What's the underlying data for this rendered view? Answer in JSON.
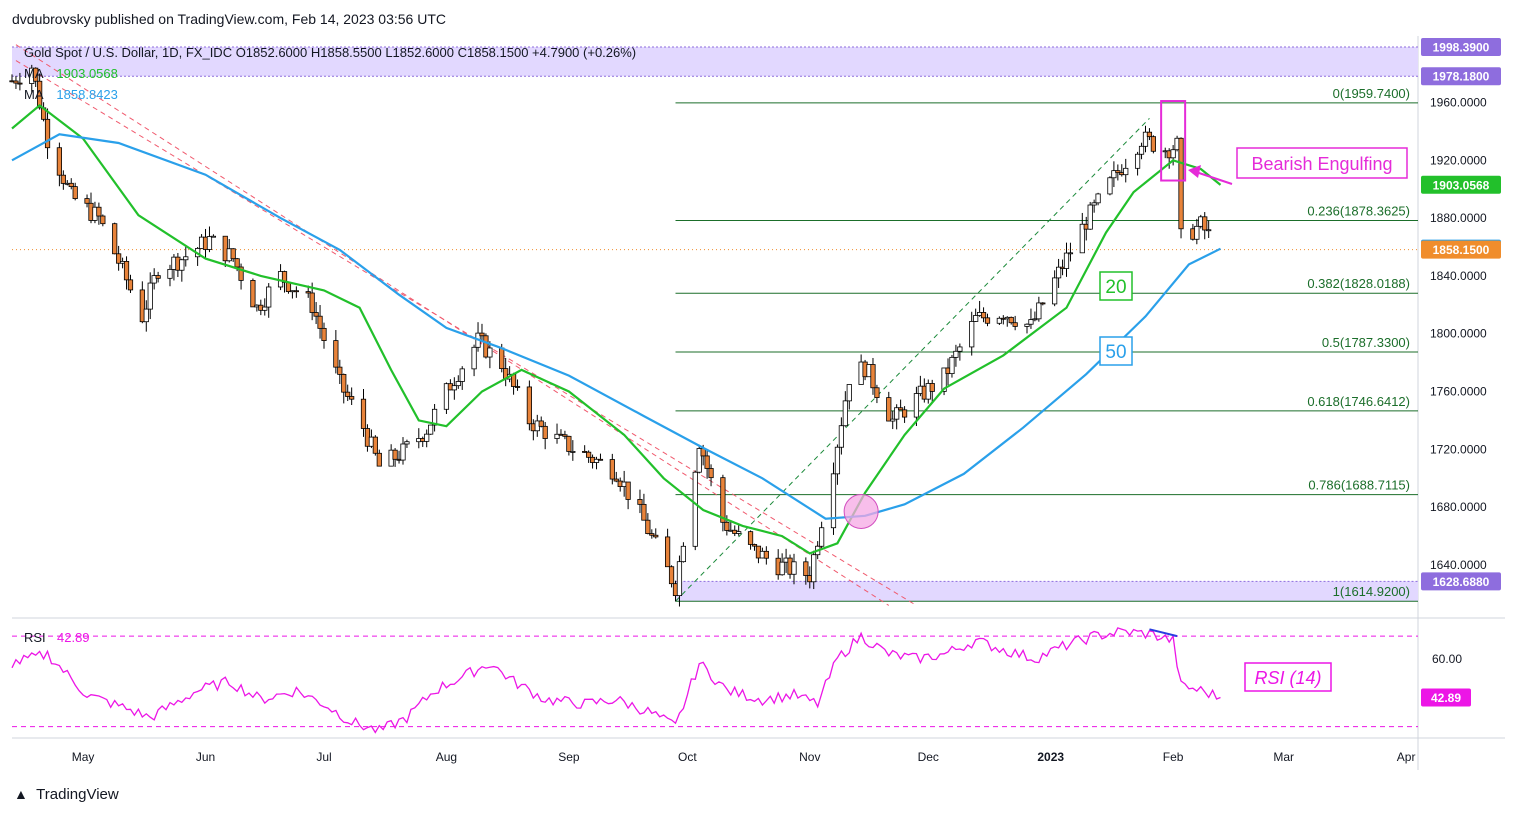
{
  "publisher_line": "dvdubrovsky published on TradingView.com, Feb 14, 2023 03:56 UTC",
  "legend": {
    "symbol_line": "Gold Spot / U.S. Dollar, 1D, FX_IDC  O1852.6000  H1858.5500  L1852.6000  C1858.1500  +4.7900 (+0.26%)",
    "ma1_label": "MA",
    "ma1_value": "1903.0568",
    "ma2_label": "MA",
    "ma2_value": "1858.8423"
  },
  "footer": {
    "brand": "TradingView"
  },
  "colors": {
    "up_candle": "#ffffff",
    "down_candle": "#e8833a",
    "candle_outline": "#000000",
    "ma20": "#22c02b",
    "ma50": "#2aa0ea",
    "trendline": "#f05a6e",
    "fib_line": "#1b6e2a",
    "zone": "#e2d8ff",
    "rsi": "#ec16e6",
    "annotation": "#e52bd8"
  },
  "chart_data": [
    {
      "type": "candlestick",
      "y_unit": "USD",
      "x_axis_ticks": [
        "May",
        "Jun",
        "Jul",
        "Aug",
        "Sep",
        "Oct",
        "Nov",
        "Dec",
        "2023",
        "Feb",
        "Mar",
        "Apr"
      ],
      "y_axis_ticks": [
        "1960.0000",
        "1920.0000",
        "1880.0000",
        "1840.0000",
        "1800.0000",
        "1760.0000",
        "1720.0000",
        "1680.0000",
        "1640.0000"
      ],
      "ylim": [
        1604,
        2006
      ],
      "x_range": [
        "2022-04-13",
        "2023-04-04"
      ],
      "price_tags": [
        {
          "label": "1998.3900",
          "value": 1998.39,
          "color": "#8e6dde"
        },
        {
          "label": "1978.1800",
          "value": 1978.18,
          "color": "#8e6dde"
        },
        {
          "label": "1903.0568",
          "value": 1903.0568,
          "color": "#22c02b"
        },
        {
          "label": "1858.8423",
          "value": 1858.8423,
          "color": "#2aa0ea"
        },
        {
          "label": "1858.1500",
          "value": 1858.15,
          "color": "#f08d2c"
        },
        {
          "label": "1628.6880",
          "value": 1628.688,
          "color": "#8e6dde"
        }
      ],
      "resistance_zone": [
        1978.18,
        1998.39
      ],
      "support_zone": [
        1614.92,
        1628.688
      ],
      "last_close": 1858.15,
      "fibonacci": {
        "start_date": "2022-09-28",
        "end_date": "2023-04-04",
        "levels": [
          {
            "label": "0(1959.7400)",
            "value": 1959.74
          },
          {
            "label": "0.236(1878.3625)",
            "value": 1878.3625
          },
          {
            "label": "0.382(1828.0188)",
            "value": 1828.0188
          },
          {
            "label": "0.5(1787.3300)",
            "value": 1787.33
          },
          {
            "label": "0.618(1746.6412)",
            "value": 1746.6412
          },
          {
            "label": "0.786(1688.7115)",
            "value": 1688.7115
          },
          {
            "label": "1(1614.9200)",
            "value": 1614.92
          }
        ]
      },
      "trendlines": [
        {
          "start": [
            "2022-04-14",
            2000
          ],
          "end": [
            "2022-11-21",
            1612
          ]
        },
        {
          "start": [
            "2022-04-14",
            1989
          ],
          "end": [
            "2022-11-28",
            1612
          ]
        }
      ],
      "channel_line": {
        "start": [
          "2022-09-28",
          1614.92
        ],
        "end": [
          "2023-01-26",
          1949
        ]
      },
      "ma_series": [
        {
          "name": "MA 20",
          "label": "20",
          "color": "#22c02b",
          "points": [
            [
              "2022-04-13",
              1942
            ],
            [
              "2022-04-20",
              1958
            ],
            [
              "2022-05-01",
              1935
            ],
            [
              "2022-05-15",
              1882
            ],
            [
              "2022-06-01",
              1852
            ],
            [
              "2022-06-15",
              1840
            ],
            [
              "2022-07-01",
              1830
            ],
            [
              "2022-07-10",
              1818
            ],
            [
              "2022-07-18",
              1775
            ],
            [
              "2022-07-25",
              1740
            ],
            [
              "2022-08-01",
              1736
            ],
            [
              "2022-08-10",
              1760
            ],
            [
              "2022-08-20",
              1775
            ],
            [
              "2022-09-01",
              1760
            ],
            [
              "2022-09-15",
              1730
            ],
            [
              "2022-09-25",
              1700
            ],
            [
              "2022-10-05",
              1678
            ],
            [
              "2022-10-15",
              1667
            ],
            [
              "2022-10-25",
              1660
            ],
            [
              "2022-11-01",
              1648
            ],
            [
              "2022-11-08",
              1655
            ],
            [
              "2022-11-15",
              1690
            ],
            [
              "2022-11-25",
              1730
            ],
            [
              "2022-12-05",
              1762
            ],
            [
              "2022-12-20",
              1785
            ],
            [
              "2023-01-05",
              1818
            ],
            [
              "2023-01-15",
              1870
            ],
            [
              "2023-01-22",
              1898
            ],
            [
              "2023-02-01",
              1920
            ],
            [
              "2023-02-08",
              1914
            ],
            [
              "2023-02-13",
              1903
            ]
          ]
        },
        {
          "name": "MA 50",
          "label": "50",
          "color": "#2aa0ea",
          "points": [
            [
              "2022-04-13",
              1920
            ],
            [
              "2022-04-25",
              1938
            ],
            [
              "2022-05-10",
              1932
            ],
            [
              "2022-06-01",
              1910
            ],
            [
              "2022-06-20",
              1880
            ],
            [
              "2022-07-05",
              1858
            ],
            [
              "2022-07-20",
              1827
            ],
            [
              "2022-08-01",
              1804
            ],
            [
              "2022-08-15",
              1790
            ],
            [
              "2022-09-01",
              1771
            ],
            [
              "2022-09-20",
              1743
            ],
            [
              "2022-10-05",
              1721
            ],
            [
              "2022-10-20",
              1700
            ],
            [
              "2022-11-05",
              1672
            ],
            [
              "2022-11-15",
              1674
            ],
            [
              "2022-11-25",
              1682
            ],
            [
              "2022-12-10",
              1703
            ],
            [
              "2022-12-25",
              1735
            ],
            [
              "2023-01-10",
              1772
            ],
            [
              "2023-01-25",
              1812
            ],
            [
              "2023-02-05",
              1848
            ],
            [
              "2023-02-13",
              1858.84
            ]
          ]
        }
      ],
      "candle_path": [
        [
          "2022-04-13",
          1975
        ],
        [
          "2022-04-18",
          1985
        ],
        [
          "2022-04-22",
          1935
        ],
        [
          "2022-04-28",
          1895
        ],
        [
          "2022-05-05",
          1880
        ],
        [
          "2022-05-10",
          1850
        ],
        [
          "2022-05-16",
          1812
        ],
        [
          "2022-05-20",
          1845
        ],
        [
          "2022-05-26",
          1852
        ],
        [
          "2022-06-02",
          1865
        ],
        [
          "2022-06-08",
          1852
        ],
        [
          "2022-06-14",
          1818
        ],
        [
          "2022-06-20",
          1840
        ],
        [
          "2022-06-28",
          1820
        ],
        [
          "2022-07-05",
          1765
        ],
        [
          "2022-07-10",
          1742
        ],
        [
          "2022-07-15",
          1708
        ],
        [
          "2022-07-21",
          1718
        ],
        [
          "2022-07-27",
          1734
        ],
        [
          "2022-08-02",
          1765
        ],
        [
          "2022-08-09",
          1795
        ],
        [
          "2022-08-15",
          1779
        ],
        [
          "2022-08-22",
          1740
        ],
        [
          "2022-08-30",
          1725
        ],
        [
          "2022-09-06",
          1715
        ],
        [
          "2022-09-13",
          1705
        ],
        [
          "2022-09-20",
          1670
        ],
        [
          "2022-09-28",
          1625
        ],
        [
          "2022-10-04",
          1726
        ],
        [
          "2022-10-10",
          1670
        ],
        [
          "2022-10-17",
          1651
        ],
        [
          "2022-10-24",
          1640
        ],
        [
          "2022-11-01",
          1633
        ],
        [
          "2022-11-07",
          1710
        ],
        [
          "2022-11-11",
          1770
        ],
        [
          "2022-11-15",
          1777
        ],
        [
          "2022-11-22",
          1740
        ],
        [
          "2022-11-28",
          1755
        ],
        [
          "2022-12-05",
          1770
        ],
        [
          "2022-12-13",
          1810
        ],
        [
          "2022-12-20",
          1815
        ],
        [
          "2022-12-27",
          1805
        ],
        [
          "2023-01-03",
          1842
        ],
        [
          "2023-01-10",
          1878
        ],
        [
          "2023-01-17",
          1908
        ],
        [
          "2023-01-24",
          1935
        ],
        [
          "2023-01-30",
          1928
        ],
        [
          "2023-02-02",
          1930
        ],
        [
          "2023-02-03",
          1866
        ],
        [
          "2023-02-08",
          1875
        ],
        [
          "2023-02-13",
          1858.15
        ]
      ],
      "rsi": {
        "label": "RSI",
        "value": "42.89",
        "value_num": 42.89,
        "ylim": [
          25,
          78
        ],
        "upper_band": 70,
        "lower_band": 30,
        "y_axis_ticks": [
          "60.00"
        ],
        "points": [
          [
            "2022-04-13",
            58
          ],
          [
            "2022-04-22",
            62
          ],
          [
            "2022-05-02",
            44
          ],
          [
            "2022-05-12",
            38
          ],
          [
            "2022-05-18",
            34
          ],
          [
            "2022-05-30",
            46
          ],
          [
            "2022-06-07",
            50
          ],
          [
            "2022-06-15",
            42
          ],
          [
            "2022-06-24",
            46
          ],
          [
            "2022-07-01",
            40
          ],
          [
            "2022-07-08",
            32
          ],
          [
            "2022-07-15",
            28
          ],
          [
            "2022-07-22",
            34
          ],
          [
            "2022-07-29",
            46
          ],
          [
            "2022-08-05",
            52
          ],
          [
            "2022-08-12",
            58
          ],
          [
            "2022-08-18",
            50
          ],
          [
            "2022-08-26",
            42
          ],
          [
            "2022-09-05",
            40
          ],
          [
            "2022-09-13",
            42
          ],
          [
            "2022-09-22",
            36
          ],
          [
            "2022-09-28",
            30
          ],
          [
            "2022-10-04",
            58
          ],
          [
            "2022-10-11",
            46
          ],
          [
            "2022-10-20",
            42
          ],
          [
            "2022-10-28",
            44
          ],
          [
            "2022-11-03",
            40
          ],
          [
            "2022-11-08",
            60
          ],
          [
            "2022-11-14",
            70
          ],
          [
            "2022-11-21",
            62
          ],
          [
            "2022-11-28",
            60
          ],
          [
            "2022-12-05",
            62
          ],
          [
            "2022-12-13",
            68
          ],
          [
            "2022-12-20",
            64
          ],
          [
            "2022-12-28",
            60
          ],
          [
            "2023-01-05",
            66
          ],
          [
            "2023-01-12",
            70
          ],
          [
            "2023-01-19",
            72
          ],
          [
            "2023-01-26",
            71
          ],
          [
            "2023-02-01",
            68
          ],
          [
            "2023-02-03",
            48
          ],
          [
            "2023-02-08",
            46
          ],
          [
            "2023-02-13",
            42.89
          ]
        ]
      },
      "rsi_divergence": {
        "start": [
          "2023-01-26",
          73
        ],
        "end": [
          "2023-02-02",
          70
        ]
      }
    }
  ],
  "annotations": {
    "bearish_engulfing": "Bearish Engulfing",
    "ma20_label": "20",
    "ma50_label": "50",
    "rsi_label": "RSI (14)"
  }
}
